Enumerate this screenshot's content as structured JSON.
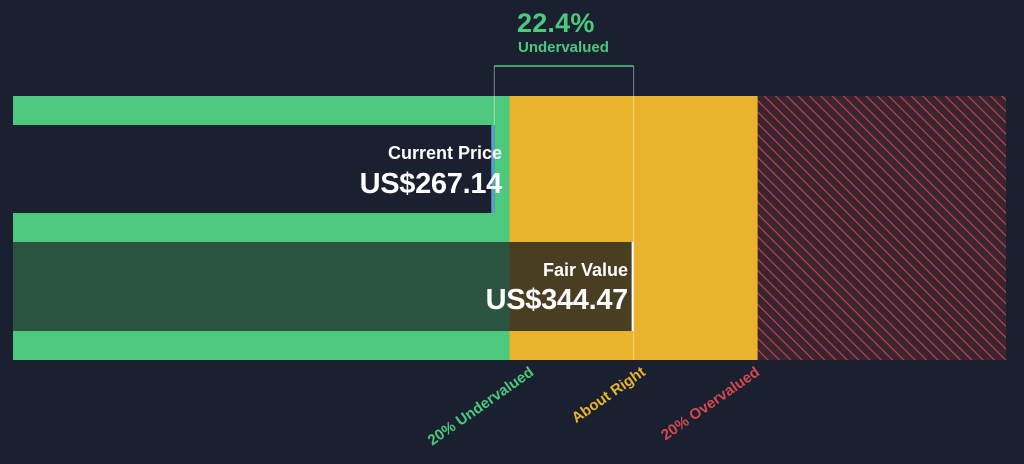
{
  "chart_data": {
    "type": "bar",
    "title": "",
    "metric": {
      "value": "22.4%",
      "label": "Undervalued"
    },
    "series": [
      {
        "name": "Current Price",
        "value": 267.14,
        "display": "US$267.14"
      },
      {
        "name": "Fair Value",
        "value": 344.47,
        "display": "US$344.47"
      }
    ],
    "zones": [
      {
        "label": "20% Undervalued",
        "from": 0,
        "to": 275.58,
        "color": "#4cc97d"
      },
      {
        "label": "About Right",
        "from": 275.58,
        "to": 413.36,
        "color": "#e9b42c"
      },
      {
        "label": "20% Overvalued",
        "from": 413.36,
        "to": 551.15,
        "color": "#d6484e"
      }
    ],
    "xlim": [
      0,
      551.15
    ],
    "colors": {
      "background": "#1b2030",
      "undervalued": "#4cc97d",
      "about_right": "#e9b42c",
      "overvalued": "#d6484e",
      "fair_value_bar": "#2a5440",
      "price_marker": "#5aa0d6"
    }
  }
}
